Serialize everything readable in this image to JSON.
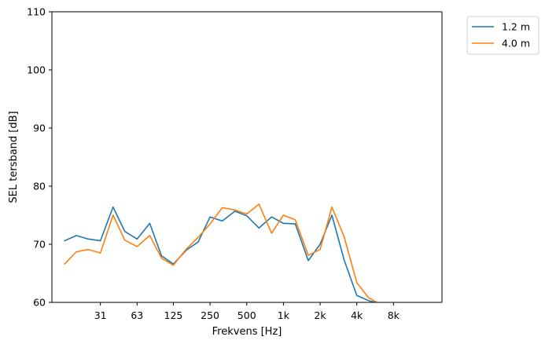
{
  "chart_data": {
    "type": "line",
    "xlabel": "Frekvens [Hz]",
    "ylabel": "SEL tersband [dB]",
    "ylim": [
      60,
      110
    ],
    "yticks": [
      60,
      70,
      80,
      90,
      100,
      110
    ],
    "xscale": "log",
    "x_tick_labels": [
      "31",
      "63",
      "125",
      "250",
      "500",
      "1k",
      "2k",
      "4k",
      "8k"
    ],
    "x_tick_values": [
      31.5,
      63,
      125,
      250,
      500,
      1000,
      2000,
      4000,
      8000
    ],
    "x": [
      16,
      20,
      25,
      31.5,
      40,
      50,
      63,
      80,
      100,
      125,
      160,
      200,
      250,
      315,
      400,
      500,
      630,
      800,
      1000,
      1250,
      1600,
      2000,
      2500,
      3150,
      4000,
      5000,
      6300,
      8000
    ],
    "series": [
      {
        "name": "1.2 m",
        "color": "#1f77b4",
        "values": [
          70.6,
          71.5,
          70.9,
          70.6,
          76.4,
          72.2,
          70.9,
          73.6,
          68.0,
          66.6,
          69.0,
          70.4,
          74.7,
          74.0,
          75.7,
          74.9,
          72.8,
          74.7,
          73.6,
          73.5,
          67.2,
          70.0,
          75.0,
          67.3,
          61.2,
          60.3,
          59.7,
          null
        ]
      },
      {
        "name": "4.0 m",
        "color": "#ff7f0e",
        "values": [
          66.6,
          68.7,
          69.1,
          68.5,
          75.0,
          70.7,
          69.6,
          71.5,
          67.6,
          66.4,
          69.2,
          71.2,
          73.5,
          76.3,
          75.9,
          75.2,
          76.9,
          71.9,
          75.0,
          74.2,
          68.1,
          69.1,
          76.4,
          71.3,
          63.4,
          60.8,
          59.6,
          null
        ]
      }
    ],
    "legend_position": "outside-top-right",
    "grid": false
  }
}
